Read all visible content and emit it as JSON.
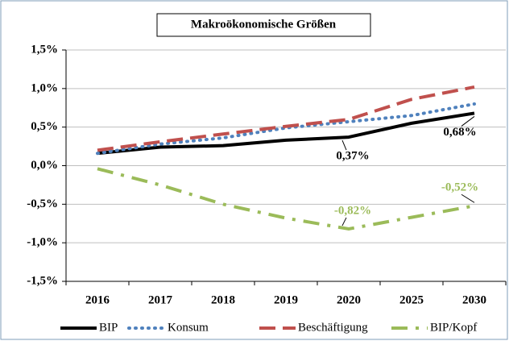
{
  "chart_data": {
    "type": "line",
    "title": "Makroökonomische Größen",
    "categories": [
      "2016",
      "2017",
      "2018",
      "2019",
      "2020",
      "2025",
      "2030"
    ],
    "series": [
      {
        "name": "BIP",
        "color": "#000000",
        "values": [
          0.16,
          0.24,
          0.26,
          0.33,
          0.37,
          0.55,
          0.68
        ],
        "value_labels": [
          null,
          null,
          null,
          null,
          "0,37%",
          null,
          "0,68%"
        ]
      },
      {
        "name": "Konsum",
        "color": "#4f81bd",
        "values": [
          0.16,
          0.28,
          0.36,
          0.49,
          0.57,
          0.65,
          0.8
        ]
      },
      {
        "name": "Beschäftigung",
        "color": "#c0504d",
        "values": [
          0.2,
          0.31,
          0.41,
          0.51,
          0.6,
          0.86,
          1.02
        ]
      },
      {
        "name": "BIP/Kopf",
        "color": "#9bbb59",
        "values": [
          -0.04,
          -0.25,
          -0.5,
          -0.68,
          -0.82,
          -0.67,
          -0.52
        ],
        "value_labels": [
          null,
          null,
          null,
          null,
          "-0,82%",
          null,
          "-0,52%"
        ]
      }
    ],
    "ylim": [
      -1.5,
      1.5
    ],
    "yticks": [
      {
        "value": -1.5,
        "label": "-1,5%"
      },
      {
        "value": -1.0,
        "label": "-1,0%"
      },
      {
        "value": -0.5,
        "label": "-0,5%"
      },
      {
        "value": 0,
        "label": "0,0%"
      },
      {
        "value": 0.5,
        "label": "0,5%"
      },
      {
        "value": 1.0,
        "label": "1,0%"
      },
      {
        "value": 1.5,
        "label": "1,5%"
      }
    ],
    "grid": true,
    "legend": "bottom"
  }
}
